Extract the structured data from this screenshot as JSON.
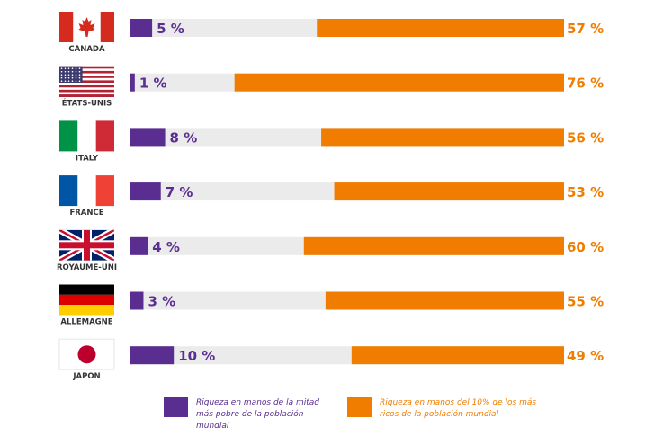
{
  "chart_data": {
    "type": "bar",
    "orientation": "horizontal",
    "stacked": true,
    "categories": [
      "CANADA",
      "ÉTATS-UNIS",
      "ITALY",
      "FRANCE",
      "ROYAUME-UNI",
      "ALLEMAGNE",
      "JAPON"
    ],
    "series": [
      {
        "name": "Riqueza en manos de la mitad más pobre de la población mundial",
        "color": "#5a2d91",
        "values": [
          5,
          1,
          8,
          7,
          4,
          3,
          10
        ],
        "labels": [
          "5 %",
          "1 %",
          "8 %",
          "7 %",
          "4 %",
          "3 %",
          "10 %"
        ]
      },
      {
        "name": "Riqueza en manos del 10% de los más ricos de la población mundial",
        "color": "#f07d00",
        "values": [
          57,
          76,
          56,
          53,
          60,
          55,
          49
        ],
        "labels": [
          "57 %",
          "76 %",
          "56 %",
          "53 %",
          "60 %",
          "55 %",
          "49 %"
        ]
      }
    ],
    "xlim": [
      0,
      100
    ],
    "middle_color": "#ebebeb",
    "grid": false,
    "legend_position": "bottom"
  },
  "flags": [
    "canada-flag",
    "usa-flag",
    "italy-flag",
    "france-flag",
    "uk-flag",
    "germany-flag",
    "japan-flag"
  ],
  "legend": {
    "poor_line1": "Riqueza en manos de  la mitad",
    "poor_line2": "más pobre de la población",
    "poor_line3": "mundial",
    "rich_line1": "Riqueza en manos del 10% de  los más",
    "rich_line2": "ricos de la población mundial"
  }
}
